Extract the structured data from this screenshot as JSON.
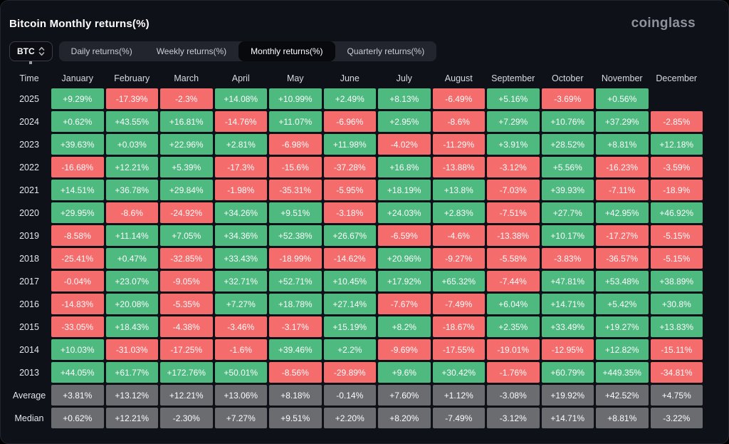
{
  "header": {
    "title": "Bitcoin Monthly returns(%)",
    "logo": "coinglass"
  },
  "controls": {
    "symbol": "BTC",
    "tabs": [
      {
        "label": "Daily returns(%)",
        "active": false
      },
      {
        "label": "Weekly returns(%)",
        "active": false
      },
      {
        "label": "Monthly returns(%)",
        "active": true
      },
      {
        "label": "Quarterly returns(%)",
        "active": false
      }
    ]
  },
  "colors": {
    "positive": "#4eba80",
    "negative": "#f56c6c",
    "summary": "#6a6c70",
    "background": "#0f1118",
    "tab_bar": "#23252e",
    "active_tab": "#08090c"
  },
  "chart_data": {
    "type": "table",
    "title": "Bitcoin Monthly returns(%)",
    "columns": [
      "Time",
      "January",
      "February",
      "March",
      "April",
      "May",
      "June",
      "July",
      "August",
      "September",
      "October",
      "November",
      "December"
    ],
    "rows": [
      {
        "label": "2025",
        "summary": false,
        "values": [
          "+9.29%",
          "-17.39%",
          "-2.3%",
          "+14.08%",
          "+10.99%",
          "+2.49%",
          "+8.13%",
          "-6.49%",
          "+5.16%",
          "-3.69%",
          "+0.56%",
          ""
        ]
      },
      {
        "label": "2024",
        "summary": false,
        "values": [
          "+0.62%",
          "+43.55%",
          "+16.81%",
          "-14.76%",
          "+11.07%",
          "-6.96%",
          "+2.95%",
          "-8.6%",
          "+7.29%",
          "+10.76%",
          "+37.29%",
          "-2.85%"
        ]
      },
      {
        "label": "2023",
        "summary": false,
        "values": [
          "+39.63%",
          "+0.03%",
          "+22.96%",
          "+2.81%",
          "-6.98%",
          "+11.98%",
          "-4.02%",
          "-11.29%",
          "+3.91%",
          "+28.52%",
          "+8.81%",
          "+12.18%"
        ]
      },
      {
        "label": "2022",
        "summary": false,
        "values": [
          "-16.68%",
          "+12.21%",
          "+5.39%",
          "-17.3%",
          "-15.6%",
          "-37.28%",
          "+16.8%",
          "-13.88%",
          "-3.12%",
          "+5.56%",
          "-16.23%",
          "-3.59%"
        ]
      },
      {
        "label": "2021",
        "summary": false,
        "values": [
          "+14.51%",
          "+36.78%",
          "+29.84%",
          "-1.98%",
          "-35.31%",
          "-5.95%",
          "+18.19%",
          "+13.8%",
          "-7.03%",
          "+39.93%",
          "-7.11%",
          "-18.9%"
        ]
      },
      {
        "label": "2020",
        "summary": false,
        "values": [
          "+29.95%",
          "-8.6%",
          "-24.92%",
          "+34.26%",
          "+9.51%",
          "-3.18%",
          "+24.03%",
          "+2.83%",
          "-7.51%",
          "+27.7%",
          "+42.95%",
          "+46.92%"
        ]
      },
      {
        "label": "2019",
        "summary": false,
        "values": [
          "-8.58%",
          "+11.14%",
          "+7.05%",
          "+34.36%",
          "+52.38%",
          "+26.67%",
          "-6.59%",
          "-4.6%",
          "-13.38%",
          "+10.17%",
          "-17.27%",
          "-5.15%"
        ]
      },
      {
        "label": "2018",
        "summary": false,
        "values": [
          "-25.41%",
          "+0.47%",
          "-32.85%",
          "+33.43%",
          "-18.99%",
          "-14.62%",
          "+20.96%",
          "-9.27%",
          "-5.58%",
          "-3.83%",
          "-36.57%",
          "-5.15%"
        ]
      },
      {
        "label": "2017",
        "summary": false,
        "values": [
          "-0.04%",
          "+23.07%",
          "-9.05%",
          "+32.71%",
          "+52.71%",
          "+10.45%",
          "+17.92%",
          "+65.32%",
          "-7.44%",
          "+47.81%",
          "+53.48%",
          "+38.89%"
        ]
      },
      {
        "label": "2016",
        "summary": false,
        "values": [
          "-14.83%",
          "+20.08%",
          "-5.35%",
          "+7.27%",
          "+18.78%",
          "+27.14%",
          "-7.67%",
          "-7.49%",
          "+6.04%",
          "+14.71%",
          "+5.42%",
          "+30.8%"
        ]
      },
      {
        "label": "2015",
        "summary": false,
        "values": [
          "-33.05%",
          "+18.43%",
          "-4.38%",
          "-3.46%",
          "-3.17%",
          "+15.19%",
          "+8.2%",
          "-18.67%",
          "+2.35%",
          "+33.49%",
          "+19.27%",
          "+13.83%"
        ]
      },
      {
        "label": "2014",
        "summary": false,
        "values": [
          "+10.03%",
          "-31.03%",
          "-17.25%",
          "-1.6%",
          "+39.46%",
          "+2.2%",
          "-9.69%",
          "-17.55%",
          "-19.01%",
          "-12.95%",
          "+12.82%",
          "-15.11%"
        ]
      },
      {
        "label": "2013",
        "summary": false,
        "values": [
          "+44.05%",
          "+61.77%",
          "+172.76%",
          "+50.01%",
          "-8.56%",
          "-29.89%",
          "+9.6%",
          "+30.42%",
          "-1.76%",
          "+60.79%",
          "+449.35%",
          "-34.81%"
        ]
      },
      {
        "label": "Average",
        "summary": true,
        "values": [
          "+3.81%",
          "+13.12%",
          "+12.21%",
          "+13.06%",
          "+8.18%",
          "-0.14%",
          "+7.60%",
          "+1.12%",
          "-3.08%",
          "+19.92%",
          "+42.52%",
          "+4.75%"
        ]
      },
      {
        "label": "Median",
        "summary": true,
        "values": [
          "+0.62%",
          "+12.21%",
          "-2.30%",
          "+7.27%",
          "+9.51%",
          "+2.20%",
          "+8.20%",
          "-7.49%",
          "-3.12%",
          "+14.71%",
          "+8.81%",
          "-3.22%"
        ]
      }
    ]
  }
}
